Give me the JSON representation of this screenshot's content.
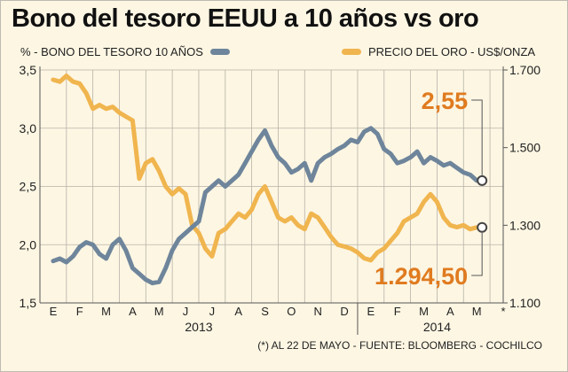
{
  "title": "Bono del tesoro EEUU a 10 años vs oro",
  "footnote": "(*) AL 22 DE MAYO - FUENTE: BLOOMBERG - COCHILCO",
  "colors": {
    "bond": "#6e859b",
    "gold": "#f0b54e",
    "bond_label": "#e07b1f",
    "gold_label": "#e07b1f",
    "background": "#fdf6e3",
    "grid": "#b7b2a8"
  },
  "chart_data": {
    "type": "line",
    "title": "Bono del tesoro EEUU a 10 años vs oro",
    "x_ticks": [
      "E",
      "F",
      "M",
      "A",
      "M",
      "J",
      "J",
      "A",
      "S",
      "O",
      "N",
      "D",
      "E",
      "F",
      "M",
      "A",
      "M",
      "*"
    ],
    "year_labels": [
      "2013",
      "2014"
    ],
    "grid": true,
    "y_left": {
      "label": "% - BONO DEL TESORO 10 AÑOS",
      "min": 1.5,
      "max": 3.5,
      "ticks": [
        "1,5",
        "2,0",
        "2,5",
        "3,0",
        "3,5"
      ]
    },
    "y_right": {
      "label": "PRECIO DEL ORO - US$/ONZA",
      "min": 1100,
      "max": 1700,
      "ticks": [
        "1.100",
        "1.300",
        "1.500",
        "1.700"
      ]
    },
    "series": [
      {
        "name": "% - BONO DEL TESORO 10 AÑOS",
        "axis": "left",
        "last_label": "2,55",
        "points": [
          [
            0,
            1.86
          ],
          [
            0.25,
            1.88
          ],
          [
            0.5,
            1.85
          ],
          [
            0.75,
            1.9
          ],
          [
            1,
            1.98
          ],
          [
            1.25,
            2.02
          ],
          [
            1.5,
            2.0
          ],
          [
            1.75,
            1.92
          ],
          [
            2,
            1.88
          ],
          [
            2.25,
            2.0
          ],
          [
            2.5,
            2.05
          ],
          [
            2.75,
            1.95
          ],
          [
            3,
            1.8
          ],
          [
            3.25,
            1.75
          ],
          [
            3.5,
            1.7
          ],
          [
            3.75,
            1.67
          ],
          [
            4,
            1.68
          ],
          [
            4.25,
            1.8
          ],
          [
            4.5,
            1.95
          ],
          [
            4.75,
            2.05
          ],
          [
            5,
            2.1
          ],
          [
            5.25,
            2.15
          ],
          [
            5.5,
            2.2
          ],
          [
            5.75,
            2.45
          ],
          [
            6,
            2.5
          ],
          [
            6.25,
            2.55
          ],
          [
            6.5,
            2.5
          ],
          [
            6.75,
            2.55
          ],
          [
            7,
            2.6
          ],
          [
            7.25,
            2.7
          ],
          [
            7.5,
            2.8
          ],
          [
            7.75,
            2.9
          ],
          [
            8,
            2.98
          ],
          [
            8.25,
            2.85
          ],
          [
            8.5,
            2.75
          ],
          [
            8.75,
            2.7
          ],
          [
            9,
            2.62
          ],
          [
            9.25,
            2.65
          ],
          [
            9.5,
            2.7
          ],
          [
            9.75,
            2.55
          ],
          [
            10,
            2.7
          ],
          [
            10.25,
            2.75
          ],
          [
            10.5,
            2.78
          ],
          [
            10.75,
            2.82
          ],
          [
            11,
            2.85
          ],
          [
            11.25,
            2.9
          ],
          [
            11.5,
            2.88
          ],
          [
            11.75,
            2.97
          ],
          [
            12,
            3.0
          ],
          [
            12.25,
            2.95
          ],
          [
            12.5,
            2.82
          ],
          [
            12.75,
            2.78
          ],
          [
            13,
            2.7
          ],
          [
            13.25,
            2.72
          ],
          [
            13.5,
            2.75
          ],
          [
            13.75,
            2.8
          ],
          [
            14,
            2.7
          ],
          [
            14.25,
            2.75
          ],
          [
            14.5,
            2.72
          ],
          [
            14.75,
            2.68
          ],
          [
            15,
            2.7
          ],
          [
            15.25,
            2.66
          ],
          [
            15.5,
            2.62
          ],
          [
            15.75,
            2.6
          ],
          [
            16,
            2.55
          ]
        ]
      },
      {
        "name": "PRECIO DEL ORO - US$/ONZA",
        "axis": "right",
        "last_label": "1.294,50",
        "points": [
          [
            0,
            1675
          ],
          [
            0.25,
            1670
          ],
          [
            0.5,
            1685
          ],
          [
            0.75,
            1670
          ],
          [
            1,
            1665
          ],
          [
            1.25,
            1640
          ],
          [
            1.5,
            1600
          ],
          [
            1.75,
            1610
          ],
          [
            2,
            1600
          ],
          [
            2.25,
            1605
          ],
          [
            2.5,
            1590
          ],
          [
            2.75,
            1580
          ],
          [
            3,
            1570
          ],
          [
            3.25,
            1420
          ],
          [
            3.5,
            1460
          ],
          [
            3.75,
            1470
          ],
          [
            4,
            1440
          ],
          [
            4.25,
            1400
          ],
          [
            4.5,
            1380
          ],
          [
            4.75,
            1395
          ],
          [
            5,
            1380
          ],
          [
            5.25,
            1300
          ],
          [
            5.5,
            1280
          ],
          [
            5.75,
            1240
          ],
          [
            6,
            1220
          ],
          [
            6.25,
            1280
          ],
          [
            6.5,
            1290
          ],
          [
            6.75,
            1310
          ],
          [
            7,
            1330
          ],
          [
            7.25,
            1320
          ],
          [
            7.5,
            1340
          ],
          [
            7.75,
            1380
          ],
          [
            8,
            1400
          ],
          [
            8.25,
            1360
          ],
          [
            8.5,
            1320
          ],
          [
            8.75,
            1310
          ],
          [
            9,
            1320
          ],
          [
            9.25,
            1300
          ],
          [
            9.5,
            1290
          ],
          [
            9.75,
            1330
          ],
          [
            10,
            1320
          ],
          [
            10.25,
            1295
          ],
          [
            10.5,
            1270
          ],
          [
            10.75,
            1250
          ],
          [
            11,
            1245
          ],
          [
            11.25,
            1240
          ],
          [
            11.5,
            1230
          ],
          [
            11.75,
            1215
          ],
          [
            12,
            1210
          ],
          [
            12.25,
            1230
          ],
          [
            12.5,
            1240
          ],
          [
            12.75,
            1260
          ],
          [
            13,
            1280
          ],
          [
            13.25,
            1310
          ],
          [
            13.5,
            1320
          ],
          [
            13.75,
            1330
          ],
          [
            14,
            1360
          ],
          [
            14.25,
            1380
          ],
          [
            14.5,
            1360
          ],
          [
            14.75,
            1320
          ],
          [
            15,
            1300
          ],
          [
            15.25,
            1295
          ],
          [
            15.5,
            1300
          ],
          [
            15.75,
            1290
          ],
          [
            16,
            1294.5
          ]
        ]
      }
    ]
  }
}
